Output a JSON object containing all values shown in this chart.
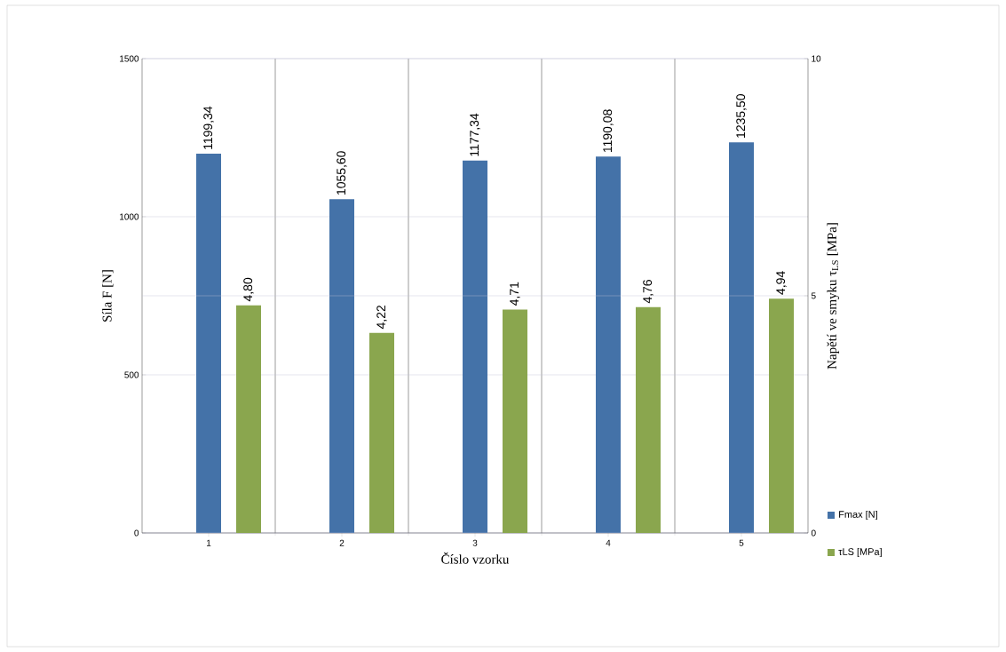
{
  "chart_data": {
    "type": "bar",
    "xlabel": "Číslo vzorku",
    "ylabel": "Síla F [N]",
    "y2label": "Napětí ve smyku τ$_{LS}$ [MPa]",
    "categories": [
      "1",
      "2",
      "3",
      "4",
      "5"
    ],
    "series": [
      {
        "name": "Fmax [N]",
        "color": "#4472a8",
        "values": [
          1199.34,
          1055.6,
          1177.34,
          1190.08,
          1235.5
        ],
        "value_labels": [
          "1199,34",
          "1055,60",
          "1177,34",
          "1190,08",
          "1235,50"
        ]
      },
      {
        "name": "τLS [MPa]",
        "color": "#8aa64e",
        "axis": "y2",
        "values": [
          4.8,
          4.22,
          4.71,
          4.76,
          4.94
        ],
        "value_labels": [
          "4,80",
          "4,22",
          "4,71",
          "4,76",
          "4,94"
        ]
      }
    ],
    "ylim": [
      0,
      1500
    ],
    "yticks": [
      0,
      500,
      1000,
      1500
    ],
    "y2lim": [
      0,
      10
    ],
    "y2ticks": [
      0,
      5,
      10
    ],
    "grid": true,
    "legend": "bottom right"
  }
}
